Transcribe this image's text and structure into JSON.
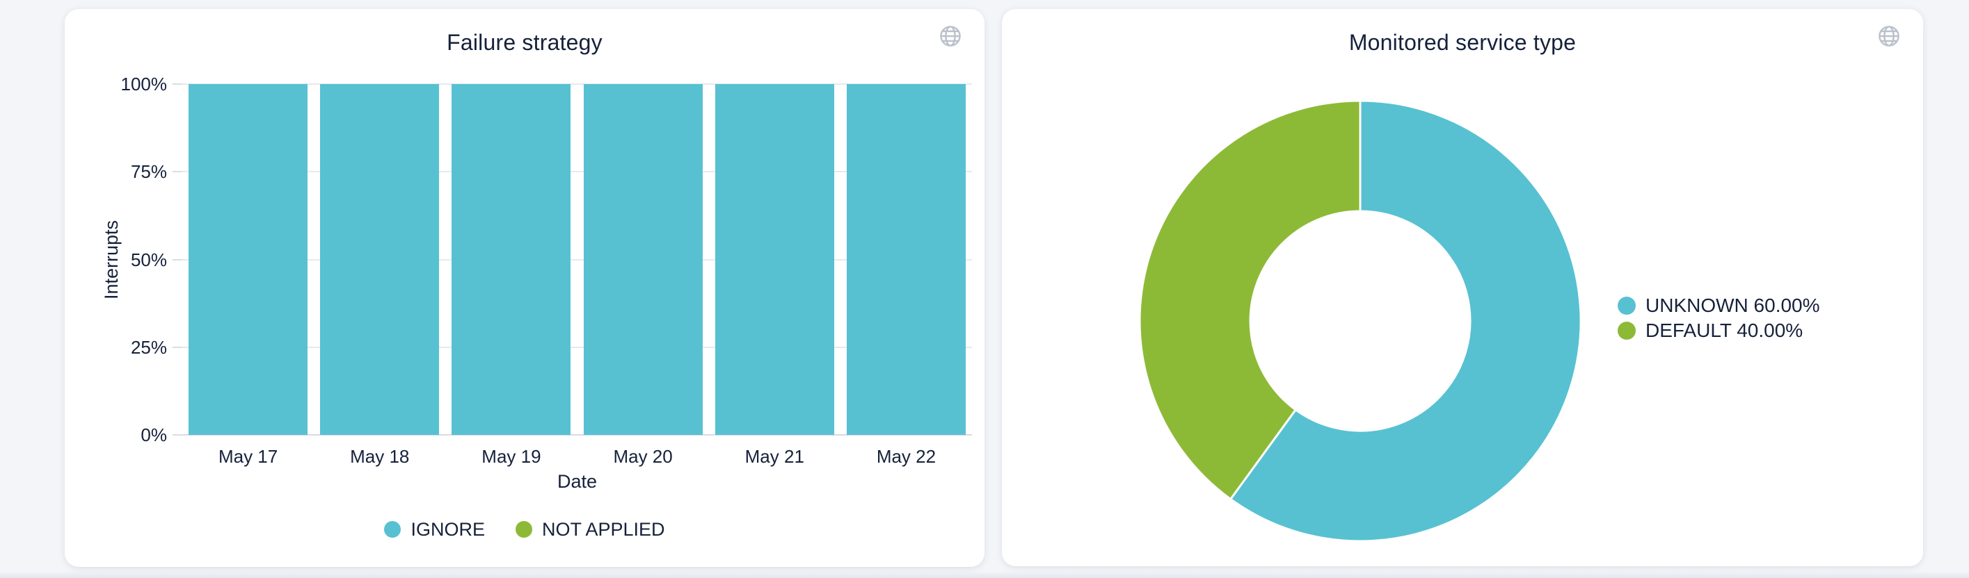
{
  "page": {
    "background": "#f3f5f9"
  },
  "cards": {
    "failure_strategy": {
      "action_icon": "globe-icon"
    },
    "monitored_service_type": {
      "action_icon": "globe-icon"
    }
  },
  "chart_data": [
    {
      "type": "bar",
      "title": "Failure strategy",
      "xlabel": "Date",
      "ylabel": "Interrupts",
      "categories": [
        "May 17",
        "May 18",
        "May 19",
        "May 20",
        "May 21",
        "May 22"
      ],
      "series": [
        {
          "name": "IGNORE",
          "color": "#57c1d2",
          "values": [
            100,
            100,
            100,
            100,
            100,
            100
          ]
        },
        {
          "name": "NOT APPLIED",
          "color": "#8dba36",
          "values": [
            0,
            0,
            0,
            0,
            0,
            0
          ]
        }
      ],
      "y_ticks": [
        {
          "label": "0%",
          "value": 0
        },
        {
          "label": "25%",
          "value": 25
        },
        {
          "label": "50%",
          "value": 50
        },
        {
          "label": "75%",
          "value": 75
        },
        {
          "label": "100%",
          "value": 100
        }
      ],
      "ylim": [
        0,
        100
      ],
      "unit": "%",
      "grid": true,
      "legend_position": "bottom"
    },
    {
      "type": "pie",
      "subtype": "donut",
      "title": "Monitored service type",
      "slices": [
        {
          "label": "UNKNOWN",
          "value": 60.0,
          "legend": "UNKNOWN 60.00%",
          "color": "#57c1d2"
        },
        {
          "label": "DEFAULT",
          "value": 40.0,
          "legend": "DEFAULT 40.00%",
          "color": "#8dba36"
        }
      ],
      "start_angle": "top",
      "direction": "clockwise",
      "inner_radius_ratio": 0.5,
      "legend_position": "right"
    }
  ]
}
